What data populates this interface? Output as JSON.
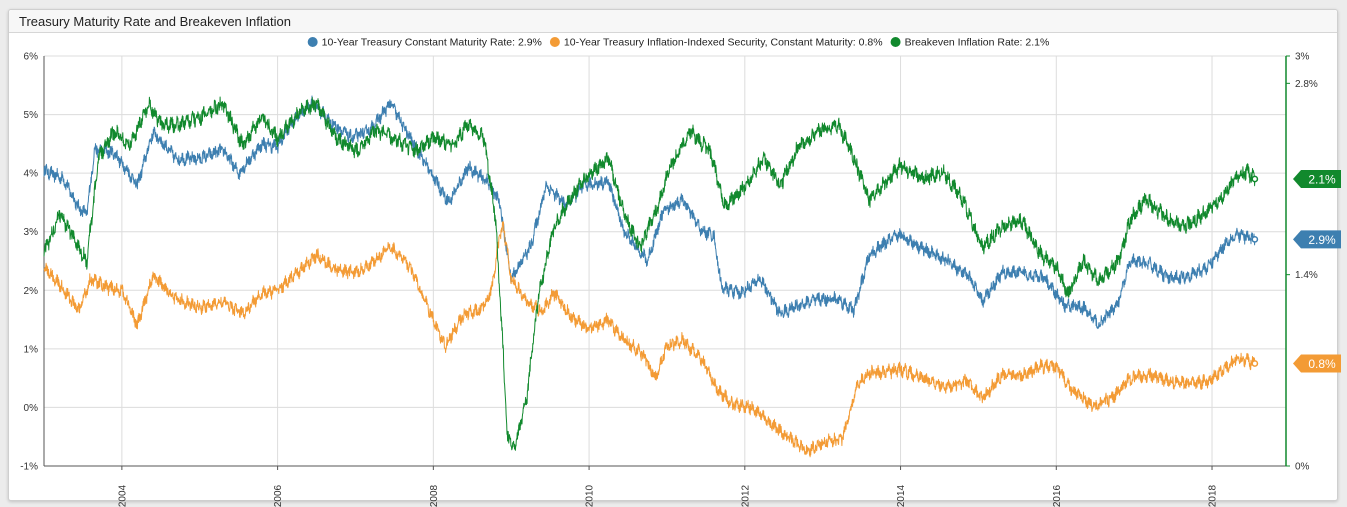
{
  "window": {
    "title": "Treasury Maturity Rate and Breakeven Inflation"
  },
  "chart_data": {
    "type": "line",
    "title": "Treasury Maturity Rate and Breakeven Inflation",
    "x_range": [
      "2003-01-01",
      "2018-12-31"
    ],
    "x_ticks": [
      "2004",
      "2006",
      "2008",
      "2010",
      "2012",
      "2014",
      "2016",
      "2018"
    ],
    "y_left": {
      "range": [
        -1,
        6
      ],
      "ticks": [
        "-1%",
        "0%",
        "1%",
        "2%",
        "3%",
        "4%",
        "5%",
        "6%"
      ],
      "unit": "%"
    },
    "y_right": {
      "range": [
        0,
        3
      ],
      "ticks": [
        "0%",
        "1.4%",
        "2.8%",
        "3%"
      ],
      "unit": "%"
    },
    "grid": true,
    "legend_position": "top-center",
    "series": [
      {
        "name": "10-Year Treasury Constant Maturity Rate: 2.9%",
        "last_label": "2.9%",
        "color": "#3d7fb0",
        "axis": "left",
        "points": [
          [
            2003.0,
            4.05
          ],
          [
            2003.25,
            3.9
          ],
          [
            2003.45,
            3.4
          ],
          [
            2003.55,
            3.3
          ],
          [
            2003.65,
            4.4
          ],
          [
            2003.9,
            4.35
          ],
          [
            2004.2,
            3.8
          ],
          [
            2004.4,
            4.7
          ],
          [
            2004.7,
            4.25
          ],
          [
            2005.0,
            4.25
          ],
          [
            2005.3,
            4.4
          ],
          [
            2005.5,
            4.0
          ],
          [
            2005.8,
            4.5
          ],
          [
            2006.0,
            4.45
          ],
          [
            2006.2,
            4.9
          ],
          [
            2006.45,
            5.2
          ],
          [
            2006.7,
            4.85
          ],
          [
            2006.95,
            4.6
          ],
          [
            2007.2,
            4.75
          ],
          [
            2007.45,
            5.2
          ],
          [
            2007.7,
            4.6
          ],
          [
            2007.95,
            4.05
          ],
          [
            2008.2,
            3.5
          ],
          [
            2008.45,
            4.1
          ],
          [
            2008.7,
            3.85
          ],
          [
            2008.85,
            3.5
          ],
          [
            2009.0,
            2.2
          ],
          [
            2009.25,
            2.75
          ],
          [
            2009.45,
            3.8
          ],
          [
            2009.7,
            3.45
          ],
          [
            2009.95,
            3.8
          ],
          [
            2010.25,
            3.85
          ],
          [
            2010.45,
            3.0
          ],
          [
            2010.75,
            2.5
          ],
          [
            2010.95,
            3.35
          ],
          [
            2011.2,
            3.55
          ],
          [
            2011.45,
            3.0
          ],
          [
            2011.6,
            2.95
          ],
          [
            2011.7,
            2.05
          ],
          [
            2011.95,
            1.95
          ],
          [
            2012.2,
            2.2
          ],
          [
            2012.45,
            1.6
          ],
          [
            2012.7,
            1.75
          ],
          [
            2012.95,
            1.85
          ],
          [
            2013.2,
            1.85
          ],
          [
            2013.4,
            1.65
          ],
          [
            2013.6,
            2.6
          ],
          [
            2013.85,
            2.85
          ],
          [
            2014.0,
            2.95
          ],
          [
            2014.3,
            2.7
          ],
          [
            2014.6,
            2.5
          ],
          [
            2014.9,
            2.2
          ],
          [
            2015.05,
            1.8
          ],
          [
            2015.3,
            2.3
          ],
          [
            2015.55,
            2.3
          ],
          [
            2015.85,
            2.2
          ],
          [
            2016.1,
            1.75
          ],
          [
            2016.35,
            1.7
          ],
          [
            2016.55,
            1.4
          ],
          [
            2016.8,
            1.8
          ],
          [
            2016.95,
            2.5
          ],
          [
            2017.2,
            2.45
          ],
          [
            2017.45,
            2.2
          ],
          [
            2017.7,
            2.25
          ],
          [
            2017.95,
            2.4
          ],
          [
            2018.2,
            2.85
          ],
          [
            2018.35,
            2.95
          ],
          [
            2018.55,
            2.87
          ]
        ]
      },
      {
        "name": "10-Year Treasury Inflation-Indexed Security, Constant Maturity: 0.8%",
        "last_label": "0.8%",
        "color": "#f39b35",
        "axis": "left",
        "points": [
          [
            2003.0,
            2.4
          ],
          [
            2003.2,
            2.1
          ],
          [
            2003.45,
            1.65
          ],
          [
            2003.6,
            2.2
          ],
          [
            2003.8,
            2.05
          ],
          [
            2004.0,
            2.0
          ],
          [
            2004.2,
            1.4
          ],
          [
            2004.4,
            2.25
          ],
          [
            2004.7,
            1.85
          ],
          [
            2005.0,
            1.7
          ],
          [
            2005.3,
            1.8
          ],
          [
            2005.55,
            1.6
          ],
          [
            2005.8,
            1.95
          ],
          [
            2006.0,
            2.0
          ],
          [
            2006.3,
            2.35
          ],
          [
            2006.5,
            2.6
          ],
          [
            2006.75,
            2.35
          ],
          [
            2007.0,
            2.3
          ],
          [
            2007.2,
            2.45
          ],
          [
            2007.45,
            2.75
          ],
          [
            2007.7,
            2.4
          ],
          [
            2007.9,
            1.8
          ],
          [
            2008.15,
            1.05
          ],
          [
            2008.4,
            1.6
          ],
          [
            2008.6,
            1.65
          ],
          [
            2008.75,
            2.0
          ],
          [
            2008.85,
            2.9
          ],
          [
            2008.9,
            3.1
          ],
          [
            2009.0,
            2.2
          ],
          [
            2009.2,
            1.8
          ],
          [
            2009.4,
            1.65
          ],
          [
            2009.55,
            1.95
          ],
          [
            2009.8,
            1.5
          ],
          [
            2010.0,
            1.35
          ],
          [
            2010.25,
            1.5
          ],
          [
            2010.4,
            1.2
          ],
          [
            2010.7,
            0.9
          ],
          [
            2010.85,
            0.5
          ],
          [
            2011.0,
            1.05
          ],
          [
            2011.2,
            1.15
          ],
          [
            2011.45,
            0.8
          ],
          [
            2011.65,
            0.3
          ],
          [
            2011.85,
            0.05
          ],
          [
            2012.1,
            0.0
          ],
          [
            2012.35,
            -0.3
          ],
          [
            2012.6,
            -0.55
          ],
          [
            2012.8,
            -0.75
          ],
          [
            2013.0,
            -0.6
          ],
          [
            2013.25,
            -0.55
          ],
          [
            2013.45,
            0.4
          ],
          [
            2013.6,
            0.6
          ],
          [
            2013.8,
            0.6
          ],
          [
            2014.0,
            0.65
          ],
          [
            2014.3,
            0.5
          ],
          [
            2014.6,
            0.35
          ],
          [
            2014.85,
            0.45
          ],
          [
            2015.05,
            0.15
          ],
          [
            2015.3,
            0.55
          ],
          [
            2015.55,
            0.55
          ],
          [
            2015.8,
            0.7
          ],
          [
            2016.0,
            0.7
          ],
          [
            2016.2,
            0.3
          ],
          [
            2016.5,
            0.0
          ],
          [
            2016.75,
            0.2
          ],
          [
            2016.95,
            0.5
          ],
          [
            2017.2,
            0.55
          ],
          [
            2017.45,
            0.45
          ],
          [
            2017.7,
            0.4
          ],
          [
            2017.95,
            0.45
          ],
          [
            2018.2,
            0.7
          ],
          [
            2018.35,
            0.85
          ],
          [
            2018.55,
            0.75
          ]
        ]
      },
      {
        "name": "Breakeven Inflation Rate: 2.1%",
        "last_label": "2.1%",
        "color": "#11892d",
        "axis": "right",
        "points": [
          [
            2003.0,
            1.55
          ],
          [
            2003.2,
            1.85
          ],
          [
            2003.45,
            1.6
          ],
          [
            2003.55,
            1.5
          ],
          [
            2003.7,
            2.25
          ],
          [
            2003.9,
            2.45
          ],
          [
            2004.1,
            2.35
          ],
          [
            2004.35,
            2.65
          ],
          [
            2004.5,
            2.5
          ],
          [
            2004.75,
            2.5
          ],
          [
            2005.0,
            2.55
          ],
          [
            2005.3,
            2.65
          ],
          [
            2005.55,
            2.35
          ],
          [
            2005.8,
            2.55
          ],
          [
            2006.0,
            2.4
          ],
          [
            2006.3,
            2.6
          ],
          [
            2006.5,
            2.65
          ],
          [
            2006.75,
            2.4
          ],
          [
            2007.0,
            2.3
          ],
          [
            2007.25,
            2.45
          ],
          [
            2007.5,
            2.4
          ],
          [
            2007.75,
            2.3
          ],
          [
            2008.0,
            2.4
          ],
          [
            2008.25,
            2.35
          ],
          [
            2008.45,
            2.5
          ],
          [
            2008.65,
            2.4
          ],
          [
            2008.8,
            1.8
          ],
          [
            2008.9,
            0.8
          ],
          [
            2008.95,
            0.2
          ],
          [
            2009.05,
            0.15
          ],
          [
            2009.2,
            0.5
          ],
          [
            2009.35,
            1.25
          ],
          [
            2009.55,
            1.75
          ],
          [
            2009.75,
            1.95
          ],
          [
            2009.95,
            2.1
          ],
          [
            2010.25,
            2.25
          ],
          [
            2010.45,
            1.85
          ],
          [
            2010.65,
            1.6
          ],
          [
            2010.85,
            1.85
          ],
          [
            2011.05,
            2.2
          ],
          [
            2011.3,
            2.45
          ],
          [
            2011.55,
            2.3
          ],
          [
            2011.75,
            1.9
          ],
          [
            2012.0,
            2.05
          ],
          [
            2012.25,
            2.25
          ],
          [
            2012.45,
            2.05
          ],
          [
            2012.7,
            2.35
          ],
          [
            2012.95,
            2.45
          ],
          [
            2013.2,
            2.5
          ],
          [
            2013.4,
            2.25
          ],
          [
            2013.6,
            1.95
          ],
          [
            2013.85,
            2.1
          ],
          [
            2014.0,
            2.2
          ],
          [
            2014.3,
            2.1
          ],
          [
            2014.55,
            2.15
          ],
          [
            2014.8,
            1.95
          ],
          [
            2015.05,
            1.6
          ],
          [
            2015.3,
            1.75
          ],
          [
            2015.55,
            1.8
          ],
          [
            2015.8,
            1.55
          ],
          [
            2016.0,
            1.45
          ],
          [
            2016.15,
            1.25
          ],
          [
            2016.35,
            1.5
          ],
          [
            2016.55,
            1.35
          ],
          [
            2016.8,
            1.5
          ],
          [
            2016.95,
            1.8
          ],
          [
            2017.15,
            1.95
          ],
          [
            2017.45,
            1.8
          ],
          [
            2017.65,
            1.75
          ],
          [
            2017.9,
            1.85
          ],
          [
            2018.1,
            1.95
          ],
          [
            2018.3,
            2.1
          ],
          [
            2018.45,
            2.15
          ],
          [
            2018.55,
            2.1
          ]
        ]
      }
    ]
  }
}
